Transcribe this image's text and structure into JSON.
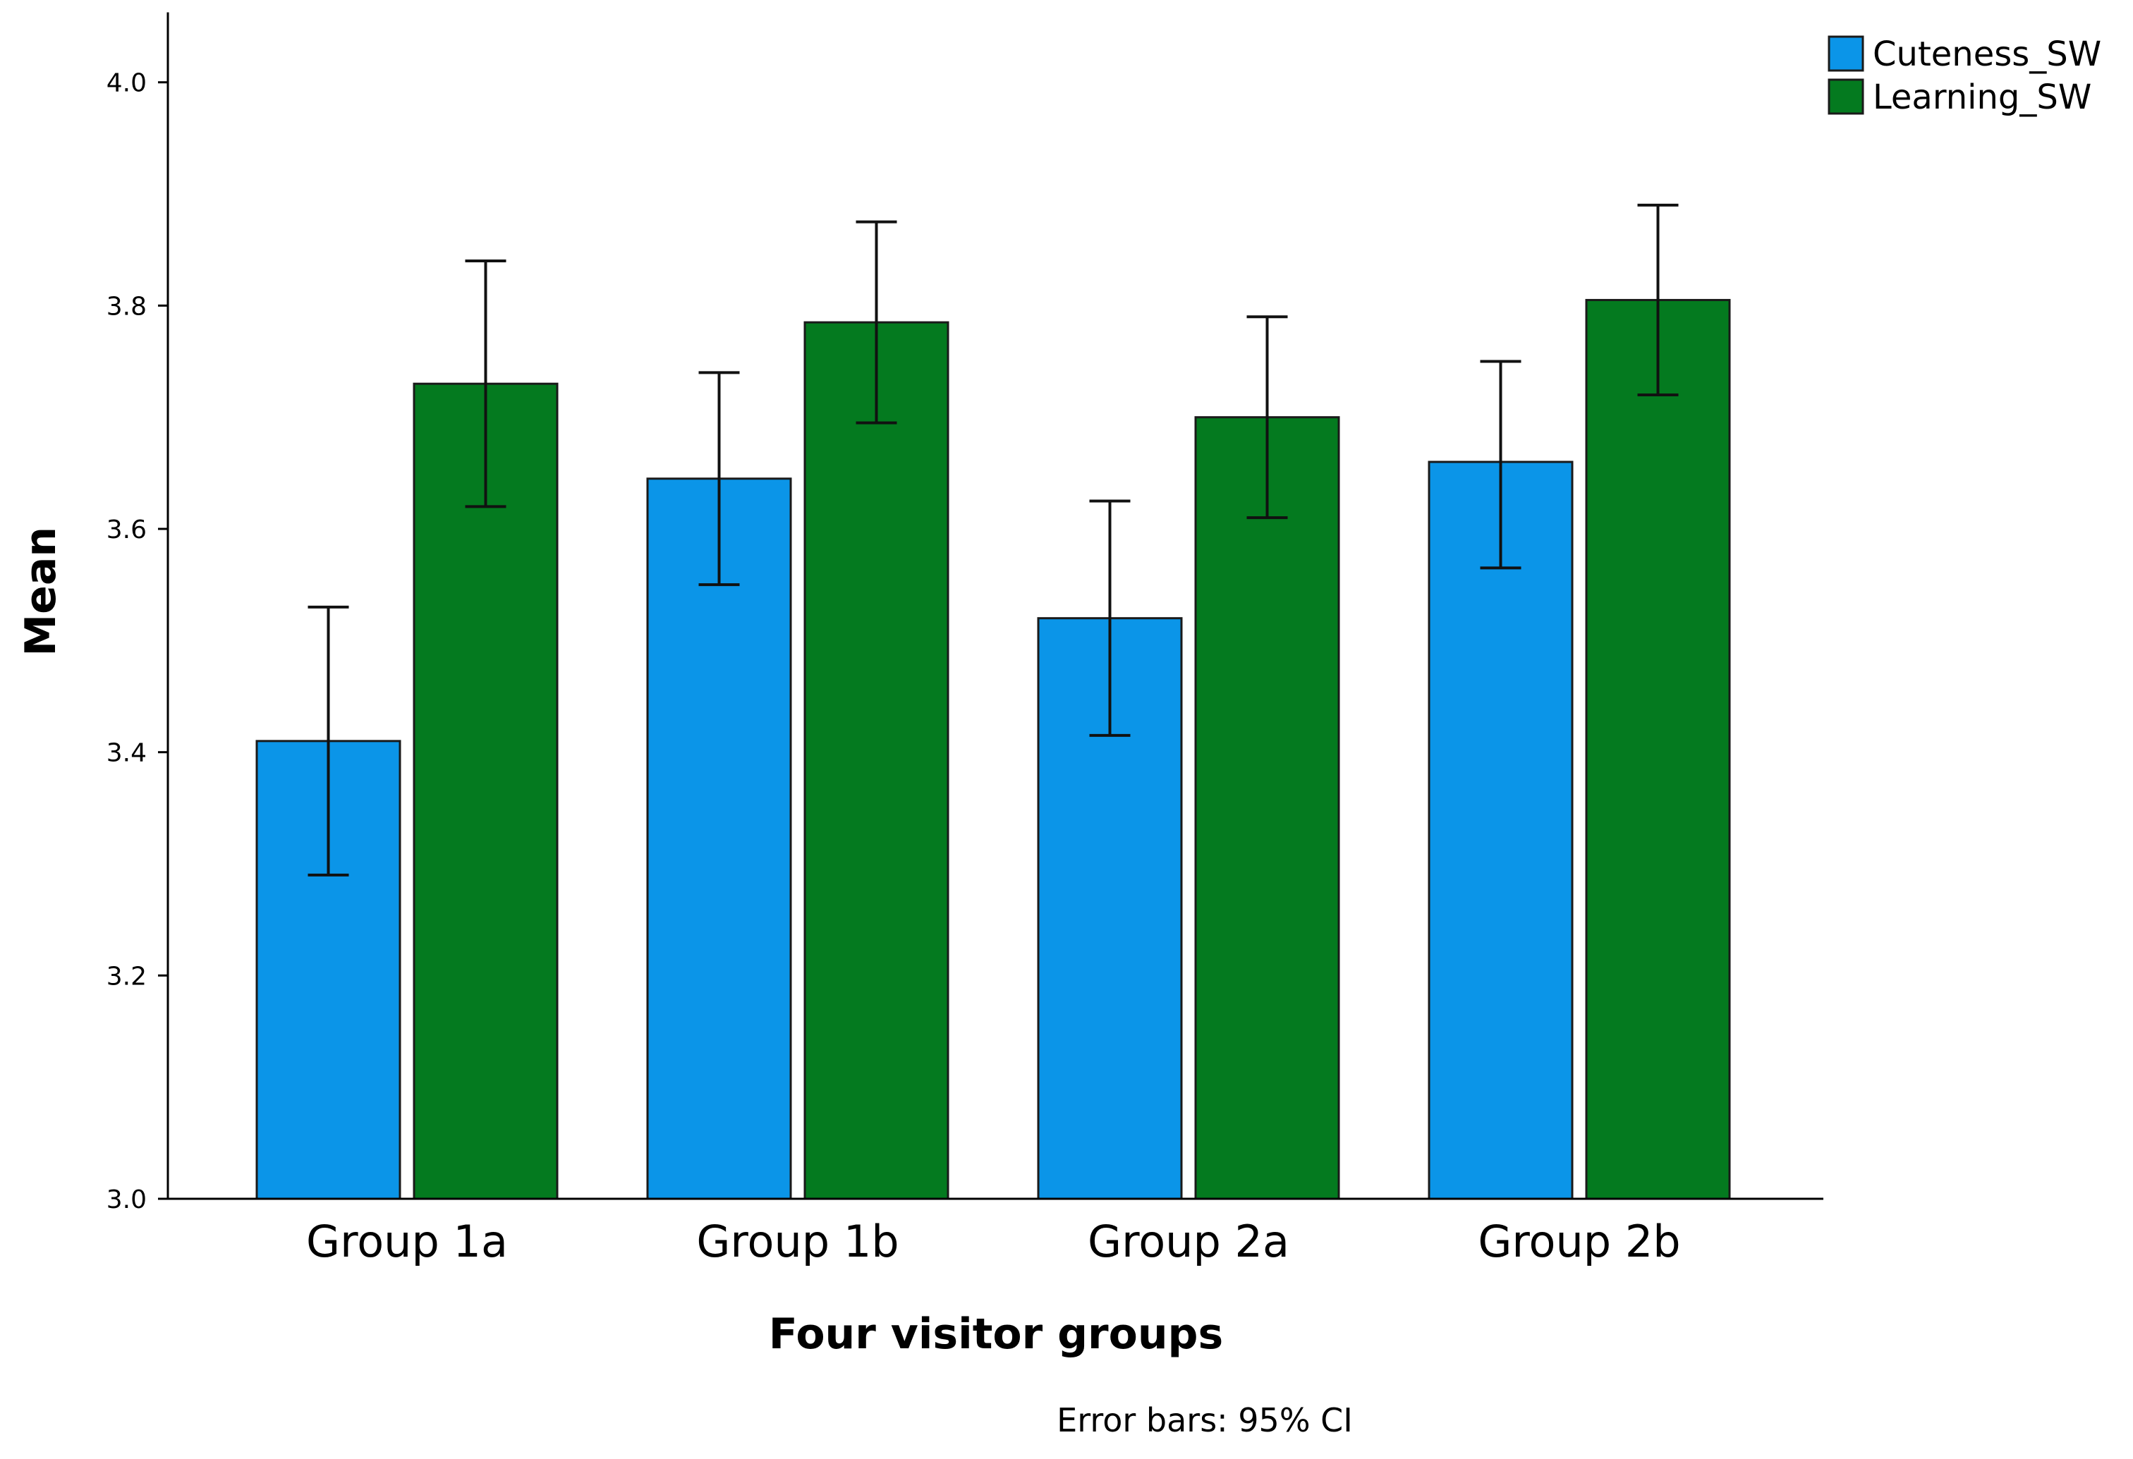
{
  "chart_data": {
    "type": "bar",
    "title": "",
    "xlabel": "Four visitor groups",
    "ylabel": "Mean",
    "ylim": [
      3.0,
      4.05
    ],
    "yticks": [
      3.0,
      3.2,
      3.4,
      3.6,
      3.8,
      4.0
    ],
    "ytick_labels": [
      "3.0",
      "3.2",
      "3.4",
      "3.6",
      "3.8",
      "4.0"
    ],
    "grid": false,
    "legend_position": "top-right",
    "categories": [
      "Group 1a",
      "Group 1b",
      "Group 2a",
      "Group 2b"
    ],
    "series": [
      {
        "name": "Cuteness_SW",
        "color": "#0b95e8",
        "values": [
          3.41,
          3.645,
          3.52,
          3.66
        ],
        "ci_low": [
          3.29,
          3.55,
          3.415,
          3.565
        ],
        "ci_high": [
          3.53,
          3.74,
          3.625,
          3.75
        ]
      },
      {
        "name": "Learning_SW",
        "color": "#047a1f",
        "values": [
          3.73,
          3.785,
          3.7,
          3.805
        ],
        "ci_low": [
          3.62,
          3.695,
          3.61,
          3.72
        ],
        "ci_high": [
          3.84,
          3.875,
          3.79,
          3.89
        ]
      }
    ],
    "note": "Error bars: 95% CI"
  }
}
